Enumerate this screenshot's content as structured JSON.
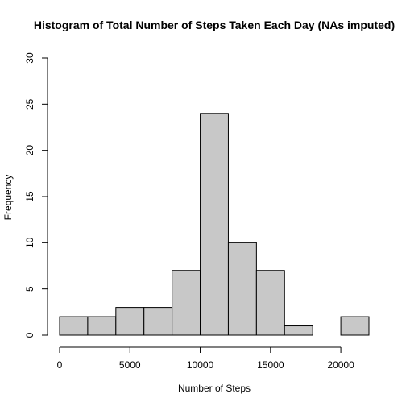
{
  "chart_data": {
    "type": "bar",
    "title": "Histogram of Total Number of Steps Taken Each Day (NAs imputed)",
    "xlabel": "Number of Steps",
    "ylabel": "Frequency",
    "bin_edges": [
      0,
      2000,
      4000,
      6000,
      8000,
      10000,
      12000,
      14000,
      16000,
      18000,
      20000,
      22000
    ],
    "values": [
      2,
      2,
      3,
      3,
      7,
      24,
      10,
      7,
      1,
      0,
      2
    ],
    "xlim": [
      0,
      22000
    ],
    "ylim": [
      0,
      30
    ],
    "x_ticks": [
      0,
      5000,
      10000,
      15000,
      20000
    ],
    "y_ticks": [
      0,
      5,
      10,
      15,
      20,
      25,
      30
    ],
    "grid": false,
    "legend": "none",
    "bar_color": "#c8c8c8",
    "edge_color": "#000000"
  }
}
